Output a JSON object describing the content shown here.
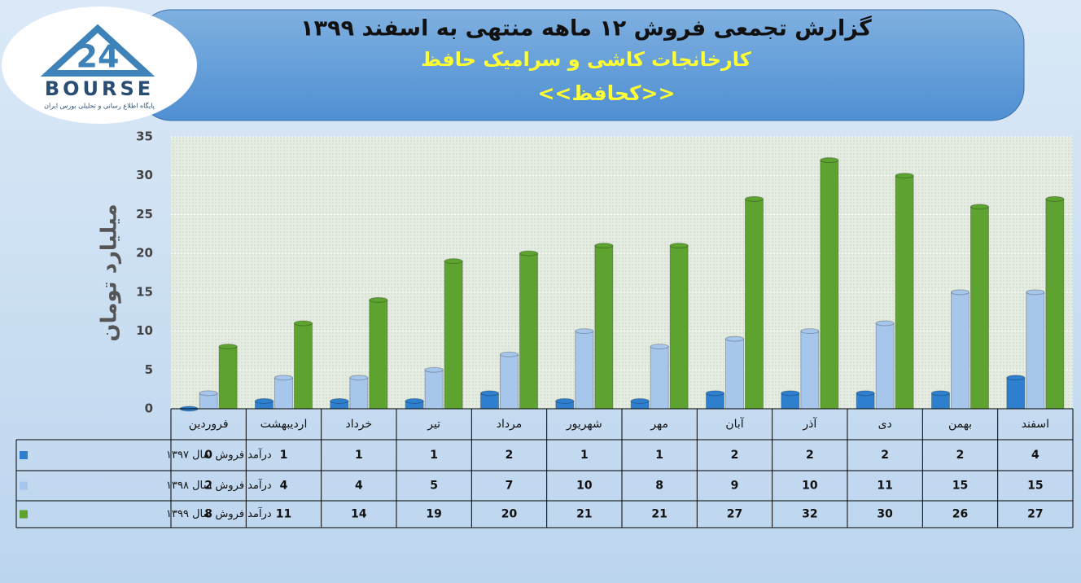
{
  "logo": {
    "number": "24",
    "name": "BOURSE",
    "tagline": "پایگاه اطلاع رسانی و تحلیلی بورس ایران"
  },
  "chart_data": {
    "type": "bar",
    "title": "گزارش تجمعی فروش ۱۲ ماهه منتهی به اسفند ۱۳۹۹",
    "subtitle": "کارخانجات کاشی و سرامیک حافظ",
    "symbol": "<<کحافظ>>",
    "y_label": "میلیارد تومان",
    "categories": [
      "فروردین",
      "اردیبهشت",
      "خرداد",
      "تیر",
      "مرداد",
      "شهریور",
      "مهر",
      "آبان",
      "آذر",
      "دی",
      "بهمن",
      "اسفند"
    ],
    "series": [
      {
        "name": "درآمد فروش سال ۱۳۹۷",
        "color": "#2f7fcf",
        "values": [
          0,
          1,
          1,
          1,
          2,
          1,
          1,
          2,
          2,
          2,
          2,
          4
        ]
      },
      {
        "name": "درآمد فروش سال ۱۳۹۸",
        "color": "#a7c6ec",
        "values": [
          2,
          4,
          4,
          5,
          7,
          10,
          8,
          9,
          10,
          11,
          15,
          15
        ]
      },
      {
        "name": "درآمد فروش سال ۱۳۹۹",
        "color": "#5ea330",
        "values": [
          8,
          11,
          14,
          19,
          20,
          21,
          21,
          27,
          32,
          30,
          26,
          27
        ]
      }
    ],
    "ylim": [
      0,
      35
    ],
    "yticks": [
      0,
      5,
      10,
      15,
      20,
      25,
      30,
      35
    ],
    "grid": true
  }
}
